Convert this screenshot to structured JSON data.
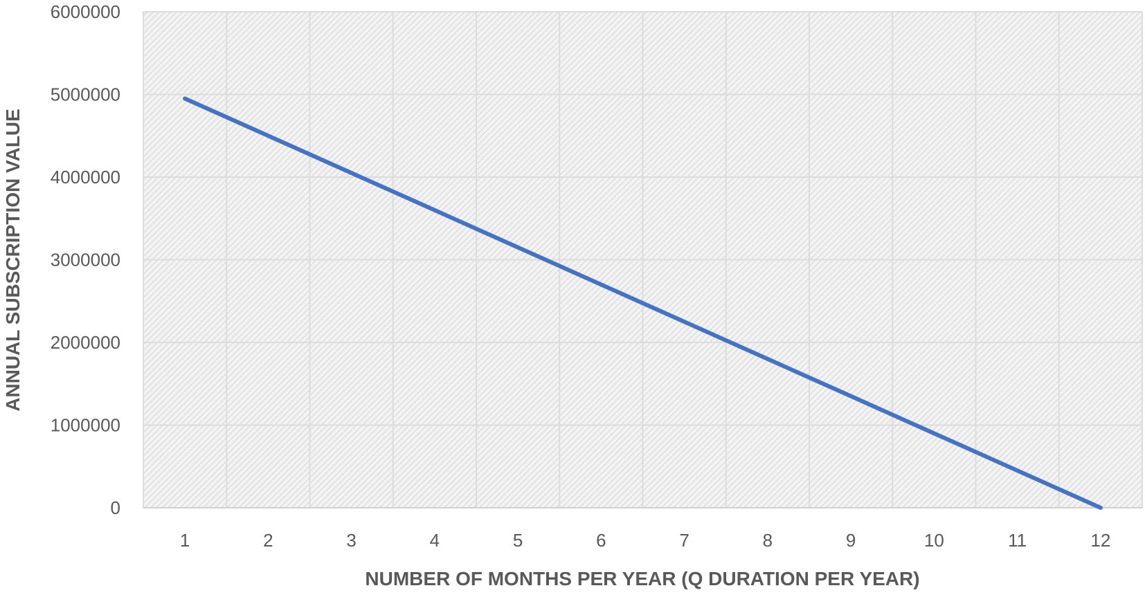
{
  "chart_data": {
    "type": "line",
    "title": "",
    "xlabel": "NUMBER OF MONTHS PER YEAR (Q DURATION  PER YEAR)",
    "ylabel": "ANNUAL SUBSCRIPTION VALUE",
    "x": [
      1,
      2,
      3,
      4,
      5,
      6,
      7,
      8,
      9,
      10,
      11,
      12
    ],
    "y_ticks": [
      "0",
      "1000000",
      "2000000",
      "3000000",
      "4000000",
      "5000000",
      "6000000"
    ],
    "ylim": [
      0,
      6000000
    ],
    "grid": true,
    "legend": "none",
    "series": [
      {
        "values": [
          4950000,
          4500000,
          4050000,
          3600000,
          3150000,
          2700000,
          2250000,
          1800000,
          1350000,
          900000,
          450000,
          0
        ],
        "color": "#4472c4"
      }
    ],
    "colors": {
      "plot_background_pattern": "#e6e6e6",
      "gridline": "#dcdcdc",
      "axis_text": "#595959"
    }
  }
}
